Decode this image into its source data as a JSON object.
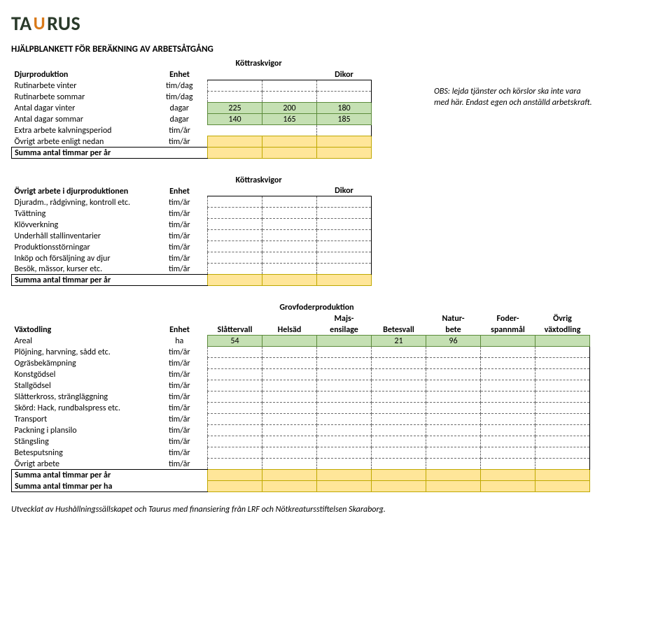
{
  "logo": {
    "text_before": "TA",
    "text_after": "RUS",
    "horns": "U"
  },
  "title": "HJÄLPBLANKETT FÖR BERÄKNING AV ARBETSÅTGÅNG",
  "note": "OBS: lejda tjänster och körslor ska inte vara med här. Endast egen och anställd arbetskraft.",
  "footer": "Utvecklat av Hushållningssällskapet och Taurus med finansiering från LRF och Nötkreatursstiftelsen Skaraborg.",
  "colors": {
    "green_fill": "#c5e0b3",
    "green_border": "#5b8a3a",
    "yellow_fill": "#ffe699",
    "yellow_border": "#bfa800",
    "dash_border": "#6b6b6b"
  },
  "section1": {
    "super_label": "Köttraskvigor",
    "headers": {
      "col0": "Djurproduktion",
      "col1": "Enhet",
      "col3": "Dikor"
    },
    "rows": [
      {
        "label": "Rutinarbete vinter",
        "unit": "tim/dag",
        "cells": [
          "",
          "",
          ""
        ],
        "style": "dash"
      },
      {
        "label": "Rutinarbete sommar",
        "unit": "tim/dag",
        "cells": [
          "",
          "",
          ""
        ],
        "style": "dash"
      },
      {
        "label": "Antal dagar vinter",
        "unit": "dagar",
        "cells": [
          "225",
          "200",
          "180"
        ],
        "style": "green"
      },
      {
        "label": "Antal dagar sommar",
        "unit": "dagar",
        "cells": [
          "140",
          "165",
          "185"
        ],
        "style": "green"
      },
      {
        "label": "Extra arbete kalvningsperiod",
        "unit": "tim/år",
        "cells": [
          "",
          "",
          ""
        ],
        "style": "dash-partial",
        "partial": [
          null,
          null,
          ""
        ]
      },
      {
        "label": "Övrigt arbete enligt nedan",
        "unit": "tim/år",
        "cells": [
          "",
          "",
          ""
        ],
        "style": "yellow"
      }
    ],
    "sum": {
      "label": "Summa antal timmar per år",
      "cells": [
        "",
        "",
        ""
      ]
    }
  },
  "section2": {
    "super_label": "Köttraskvigor",
    "headers": {
      "col0": "Övrigt arbete i djurproduktionen",
      "col1": "Enhet",
      "col3": "Dikor"
    },
    "rows": [
      {
        "label": "Djuradm., rådgivning, kontroll etc.",
        "unit": "tim/år"
      },
      {
        "label": "Tvättning",
        "unit": "tim/år"
      },
      {
        "label": "Klövverkning",
        "unit": "tim/år"
      },
      {
        "label": "Underhåll stallinventarier",
        "unit": "tim/år"
      },
      {
        "label": "Produktionsstörningar",
        "unit": "tim/år"
      },
      {
        "label": "Inköp och försäljning av djur",
        "unit": "tim/år"
      },
      {
        "label": "Besök, mässor, kurser etc.",
        "unit": "tim/år"
      }
    ],
    "sum": {
      "label": "Summa antal timmar per år"
    }
  },
  "section3": {
    "super_group": "Grovfoderproduktion",
    "headers": {
      "col0": "Växtodling",
      "col1": "Enhet",
      "top": [
        "",
        "",
        "Majs-",
        "",
        "Natur-",
        "Foder-",
        "Övrig"
      ],
      "bottom": [
        "Slåttervall",
        "Helsäd",
        "ensilage",
        "Betesvall",
        "bete",
        "spannmål",
        "växtodling"
      ]
    },
    "areal": {
      "label": "Areal",
      "unit": "ha",
      "values": [
        "54",
        "",
        "",
        "21",
        "96",
        "",
        ""
      ]
    },
    "rows": [
      {
        "label": "Plöjning, harvning, sådd etc.",
        "unit": "tim/år"
      },
      {
        "label": "Ogräsbekämpning",
        "unit": "tim/år"
      },
      {
        "label": "Konstgödsel",
        "unit": "tim/år"
      },
      {
        "label": "Stallgödsel",
        "unit": "tim/år"
      },
      {
        "label": "Slåtterkross, strängläggning",
        "unit": "tim/år"
      },
      {
        "label": "Skörd: Hack, rundbalspress etc.",
        "unit": "tim/år"
      },
      {
        "label": "Transport",
        "unit": "tim/år"
      },
      {
        "label": "Packning i plansilo",
        "unit": "tim/år"
      },
      {
        "label": "Stängsling",
        "unit": "tim/år"
      },
      {
        "label": "Betesputsning",
        "unit": "tim/år"
      },
      {
        "label": "Övrigt arbete",
        "unit": "tim/år"
      }
    ],
    "sum1": {
      "label": "Summa antal timmar per år"
    },
    "sum2": {
      "label": "Summa antal timmar per ha"
    }
  }
}
